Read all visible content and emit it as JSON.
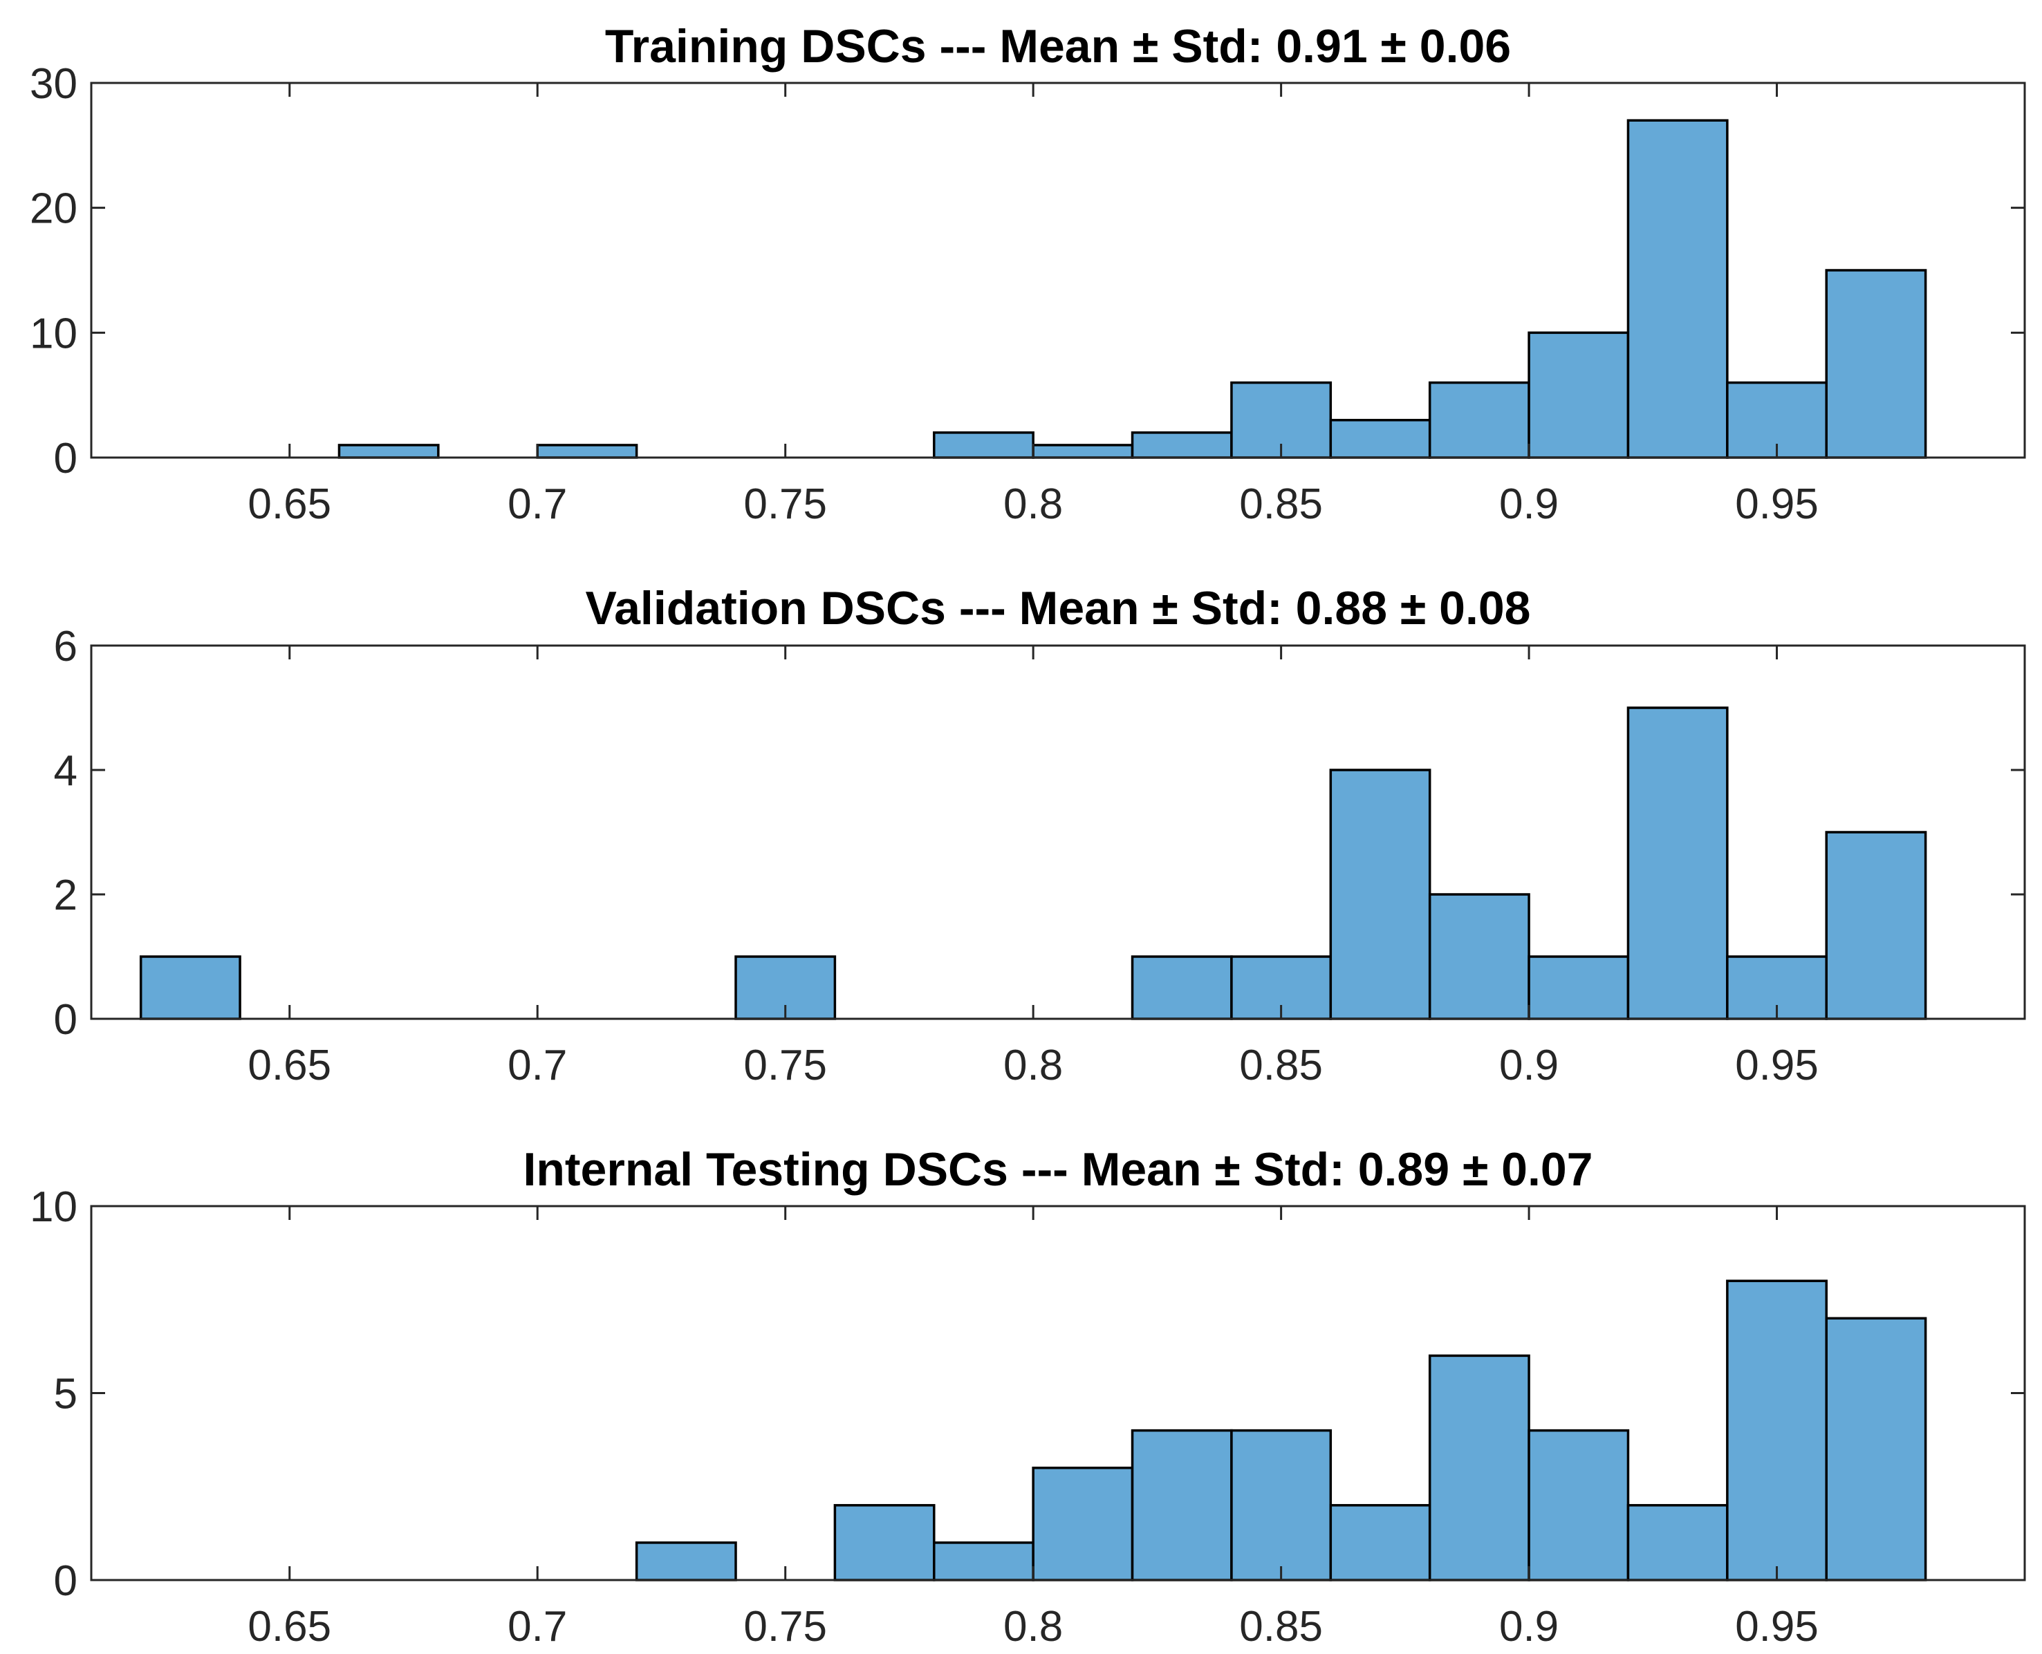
{
  "chart_data": [
    {
      "type": "bar",
      "title": "Training DSCs --- Mean ± Std: 0.91 ± 0.06",
      "xlabel": "",
      "ylabel": "",
      "xlim": [
        0.61,
        1.0
      ],
      "ylim": [
        0,
        30
      ],
      "xticks": [
        0.65,
        0.7,
        0.75,
        0.8,
        0.85,
        0.9,
        0.95
      ],
      "xtick_labels": [
        "0.65",
        "0.7",
        "0.75",
        "0.8",
        "0.85",
        "0.9",
        "0.95"
      ],
      "yticks": [
        0,
        10,
        20,
        30
      ],
      "ytick_labels": [
        "0",
        "10",
        "20",
        "30"
      ],
      "bin_edges": [
        0.62,
        0.64,
        0.66,
        0.68,
        0.7,
        0.72,
        0.74,
        0.76,
        0.78,
        0.8,
        0.82,
        0.84,
        0.86,
        0.88,
        0.9,
        0.92,
        0.94,
        0.96,
        0.98
      ],
      "values": [
        0,
        0,
        1,
        0,
        1,
        0,
        0,
        0,
        2,
        1,
        2,
        6,
        3,
        6,
        10,
        27,
        6,
        15
      ],
      "color": "#65a9d7"
    },
    {
      "type": "bar",
      "title": "Validation DSCs --- Mean ± Std: 0.88 ± 0.08",
      "xlabel": "",
      "ylabel": "",
      "xlim": [
        0.61,
        1.0
      ],
      "ylim": [
        0,
        6
      ],
      "xticks": [
        0.65,
        0.7,
        0.75,
        0.8,
        0.85,
        0.9,
        0.95
      ],
      "xtick_labels": [
        "0.65",
        "0.7",
        "0.75",
        "0.8",
        "0.85",
        "0.9",
        "0.95"
      ],
      "yticks": [
        0,
        2,
        4,
        6
      ],
      "ytick_labels": [
        "0",
        "2",
        "4",
        "6"
      ],
      "bin_edges": [
        0.62,
        0.64,
        0.66,
        0.68,
        0.7,
        0.72,
        0.74,
        0.76,
        0.78,
        0.8,
        0.82,
        0.84,
        0.86,
        0.88,
        0.9,
        0.92,
        0.94,
        0.96,
        0.98
      ],
      "values": [
        1,
        0,
        0,
        0,
        0,
        0,
        1,
        0,
        0,
        0,
        1,
        1,
        4,
        2,
        1,
        5,
        1,
        3
      ],
      "color": "#65a9d7"
    },
    {
      "type": "bar",
      "title": "Internal Testing DSCs --- Mean ± Std: 0.89 ± 0.07",
      "xlabel": "",
      "ylabel": "",
      "xlim": [
        0.61,
        1.0
      ],
      "ylim": [
        0,
        10
      ],
      "xticks": [
        0.65,
        0.7,
        0.75,
        0.8,
        0.85,
        0.9,
        0.95
      ],
      "xtick_labels": [
        "0.65",
        "0.7",
        "0.75",
        "0.8",
        "0.85",
        "0.9",
        "0.95"
      ],
      "yticks": [
        0,
        5,
        10
      ],
      "ytick_labels": [
        "0",
        "5",
        "10"
      ],
      "bin_edges": [
        0.62,
        0.64,
        0.66,
        0.68,
        0.7,
        0.72,
        0.74,
        0.76,
        0.78,
        0.8,
        0.82,
        0.84,
        0.86,
        0.88,
        0.9,
        0.92,
        0.94,
        0.96,
        0.98
      ],
      "values": [
        0,
        0,
        0,
        0,
        0,
        1,
        0,
        2,
        1,
        3,
        4,
        4,
        2,
        6,
        4,
        2,
        8,
        7
      ],
      "color": "#65a9d7"
    }
  ]
}
